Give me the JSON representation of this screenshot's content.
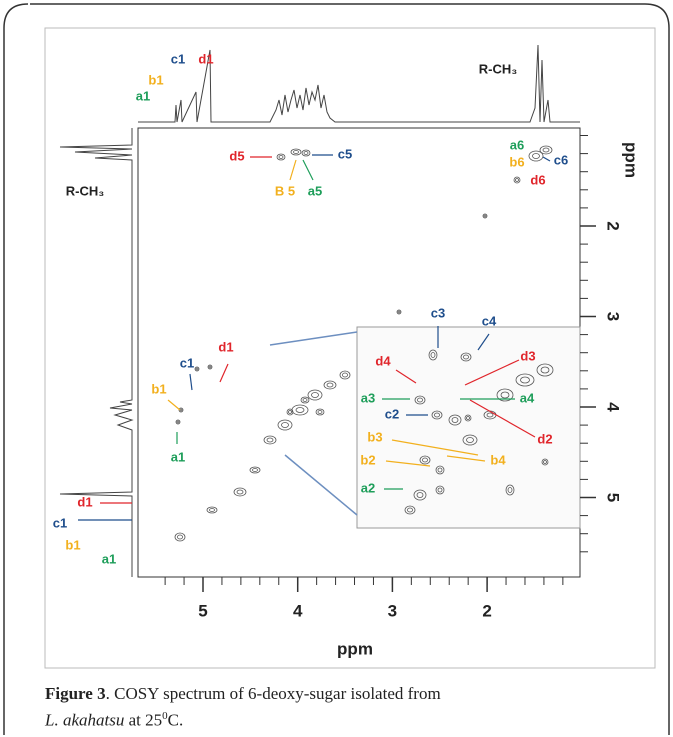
{
  "figure": {
    "spectrum": {
      "x_label": "ppm",
      "y_label": "ppm",
      "x_ticks": [
        5,
        4,
        3,
        2
      ],
      "y_ticks": [
        2,
        3,
        4,
        5
      ],
      "annotations": [
        {
          "text": "c1",
          "color": "#1f4e8c"
        },
        {
          "text": "d1",
          "color": "#e0252b"
        },
        {
          "text": "b1",
          "color": "#f2b01e"
        },
        {
          "text": "a1",
          "color": "#1e9e5a"
        },
        {
          "text": "R-CH₃",
          "color": "#222222"
        },
        {
          "text": "R-CH₃",
          "color": "#222222"
        },
        {
          "text": "d5",
          "color": "#e0252b"
        },
        {
          "text": "B 5",
          "color": "#f2b01e"
        },
        {
          "text": "a5",
          "color": "#1e9e5a"
        },
        {
          "text": "c5",
          "color": "#1f4e8c"
        },
        {
          "text": "a6",
          "color": "#1e9e5a"
        },
        {
          "text": "b6",
          "color": "#f2b01e"
        },
        {
          "text": "c6",
          "color": "#1f4e8c"
        },
        {
          "text": "d6",
          "color": "#e0252b"
        },
        {
          "text": "c1",
          "color": "#1f4e8c"
        },
        {
          "text": "d1",
          "color": "#e0252b"
        },
        {
          "text": "b1",
          "color": "#f2b01e"
        },
        {
          "text": "a1",
          "color": "#1e9e5a"
        },
        {
          "text": "d1",
          "color": "#e0252b"
        },
        {
          "text": "c1",
          "color": "#1f4e8c"
        },
        {
          "text": "b1",
          "color": "#f2b01e"
        },
        {
          "text": "a1",
          "color": "#1e9e5a"
        },
        {
          "text": "c3",
          "color": "#1f4e8c"
        },
        {
          "text": "c4",
          "color": "#1f4e8c"
        },
        {
          "text": "d4",
          "color": "#e0252b"
        },
        {
          "text": "d3",
          "color": "#e0252b"
        },
        {
          "text": "a3",
          "color": "#1e9e5a"
        },
        {
          "text": "a4",
          "color": "#1e9e5a"
        },
        {
          "text": "c2",
          "color": "#1f4e8c"
        },
        {
          "text": "d2",
          "color": "#e0252b"
        },
        {
          "text": "b3",
          "color": "#f2b01e"
        },
        {
          "text": "b2",
          "color": "#f2b01e"
        },
        {
          "text": "b4",
          "color": "#f2b01e"
        },
        {
          "text": "a2",
          "color": "#1e9e5a"
        }
      ]
    },
    "caption": {
      "label": "Figure 3",
      "text": ". COSY spectrum of 6-deoxy-sugar isolated from",
      "species": "L. akahatsu",
      "text2": " at 25",
      "superscript": "0",
      "text3": "C."
    }
  }
}
